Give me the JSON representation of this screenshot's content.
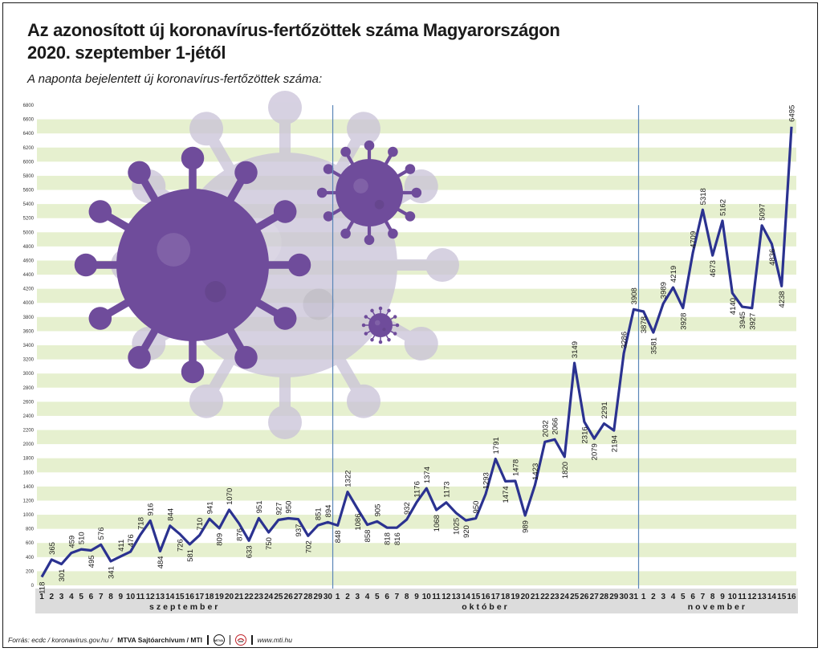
{
  "title_line1": "Az azonosított új koronavírus-fertőzöttek száma Magyarországon",
  "title_line2": "2020. szeptember 1-jétől",
  "subtitle": "A naponta bejelentett új koronavírus-fertőzöttek száma:",
  "footer": {
    "source": "Forrás: ecdc / koronavirus.gov.hu /",
    "agency": "MTVA Sajtóarchívum / MTI",
    "logo_text": "MTVA",
    "website": "www.mti.hu"
  },
  "colors": {
    "line": "#2b3290",
    "stripe": "#e6f0cf",
    "divider": "#5b86b8",
    "axis_band": "#dcdcdc",
    "virus_dark": "#6f4c9b",
    "virus_light": "#c9c2d8"
  },
  "chart_data": {
    "type": "line",
    "title": "Az azonosított új koronavírus-fertőzöttek száma Magyarországon 2020. szeptember 1-jétől",
    "subtitle": "A naponta bejelentett új koronavírus-fertőzöttek száma:",
    "xlabel": "",
    "ylabel": "",
    "ylim": [
      0,
      6800
    ],
    "y_ticks": [
      "0",
      "200",
      "400",
      "600",
      "800",
      "1000",
      "1200",
      "1400",
      "1600",
      "1800",
      "2000",
      "2200",
      "2400",
      "2600",
      "2800",
      "3000",
      "3200",
      "3400",
      "3600",
      "3800",
      "4000",
      "4200",
      "4400",
      "4600",
      "4800",
      "5000",
      "5200",
      "5400",
      "5600",
      "5800",
      "6000",
      "6200",
      "6400",
      "6600",
      "6800"
    ],
    "months": [
      {
        "name": "szeptember",
        "days": [
          "1",
          "2",
          "3",
          "4",
          "5",
          "6",
          "7",
          "8",
          "9",
          "10",
          "11",
          "12",
          "13",
          "14",
          "15",
          "16",
          "17",
          "18",
          "19",
          "20",
          "21",
          "22",
          "23",
          "24",
          "25",
          "26",
          "27",
          "28",
          "29",
          "30"
        ]
      },
      {
        "name": "október",
        "days": [
          "1",
          "2",
          "3",
          "4",
          "5",
          "6",
          "7",
          "8",
          "9",
          "10",
          "11",
          "12",
          "13",
          "14",
          "15",
          "16",
          "17",
          "18",
          "19",
          "20",
          "21",
          "22",
          "23",
          "24",
          "25",
          "26",
          "27",
          "28",
          "29",
          "30",
          "31"
        ]
      },
      {
        "name": "november",
        "days": [
          "1",
          "2",
          "3",
          "4",
          "5",
          "6",
          "7",
          "8",
          "9",
          "10",
          "11",
          "12",
          "13",
          "14",
          "15",
          "16"
        ]
      }
    ],
    "values": [
      118,
      365,
      301,
      459,
      510,
      495,
      576,
      341,
      411,
      476,
      718,
      916,
      484,
      844,
      726,
      581,
      710,
      941,
      809,
      1070,
      876,
      633,
      951,
      750,
      927,
      950,
      937,
      702,
      851,
      894,
      848,
      1322,
      1086,
      858,
      905,
      818,
      816,
      932,
      1176,
      1374,
      1068,
      1173,
      1025,
      920,
      950,
      1293,
      1791,
      1474,
      1478,
      989,
      1423,
      2032,
      2066,
      1820,
      3149,
      2316,
      2079,
      2291,
      2194,
      3286,
      3908,
      3878,
      3581,
      3989,
      4219,
      3928,
      4709,
      5318,
      4673,
      5162,
      4140,
      3945,
      3927,
      5097,
      4836,
      4238,
      6495
    ],
    "grid": true,
    "legend": "none"
  }
}
